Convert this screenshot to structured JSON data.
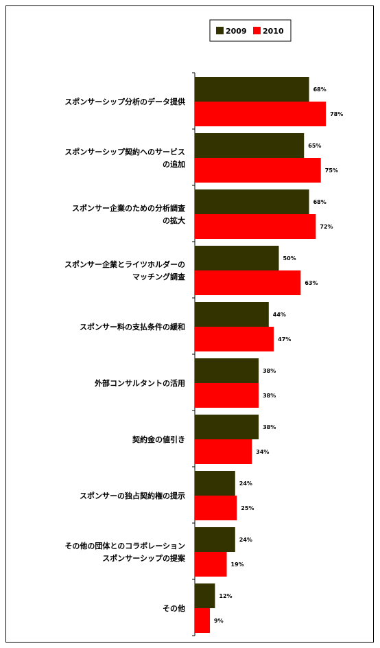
{
  "chart_data": {
    "type": "bar",
    "orientation": "horizontal",
    "categories": [
      [
        "スポンサーシップ分析のデータ提供"
      ],
      [
        "スポンサーシップ契約へのサービス",
        "の追加"
      ],
      [
        "スポンサー企業のための分析調査",
        "の拡大"
      ],
      [
        "スポンサー企業とライツホルダーの",
        "マッチング調査"
      ],
      [
        "スポンサー料の支払条件の緩和"
      ],
      [
        "外部コンサルタントの活用"
      ],
      [
        "契約金の値引き"
      ],
      [
        "スポンサーの独占契約権の提示"
      ],
      [
        "その他の団体とのコラボレーション",
        "スポンサーシップの提案"
      ],
      [
        "その他"
      ]
    ],
    "series": [
      {
        "name": "2009",
        "color": "#333300",
        "values": [
          68,
          65,
          68,
          50,
          44,
          38,
          38,
          24,
          24,
          12
        ],
        "labels": [
          "68%",
          "65%",
          "68%",
          "50%",
          "44%",
          "38%",
          "38%",
          "24%",
          "24%",
          "12%"
        ]
      },
      {
        "name": "2010",
        "color": "#ff0000",
        "values": [
          78,
          75,
          72,
          63,
          47,
          38,
          34,
          25,
          19,
          9
        ],
        "labels": [
          "78%",
          "75%",
          "72%",
          "63%",
          "47%",
          "38%",
          "34%",
          "25%",
          "19%",
          "9%"
        ]
      }
    ],
    "value_unit": "%",
    "legend_position": "top-right",
    "grid": false
  }
}
